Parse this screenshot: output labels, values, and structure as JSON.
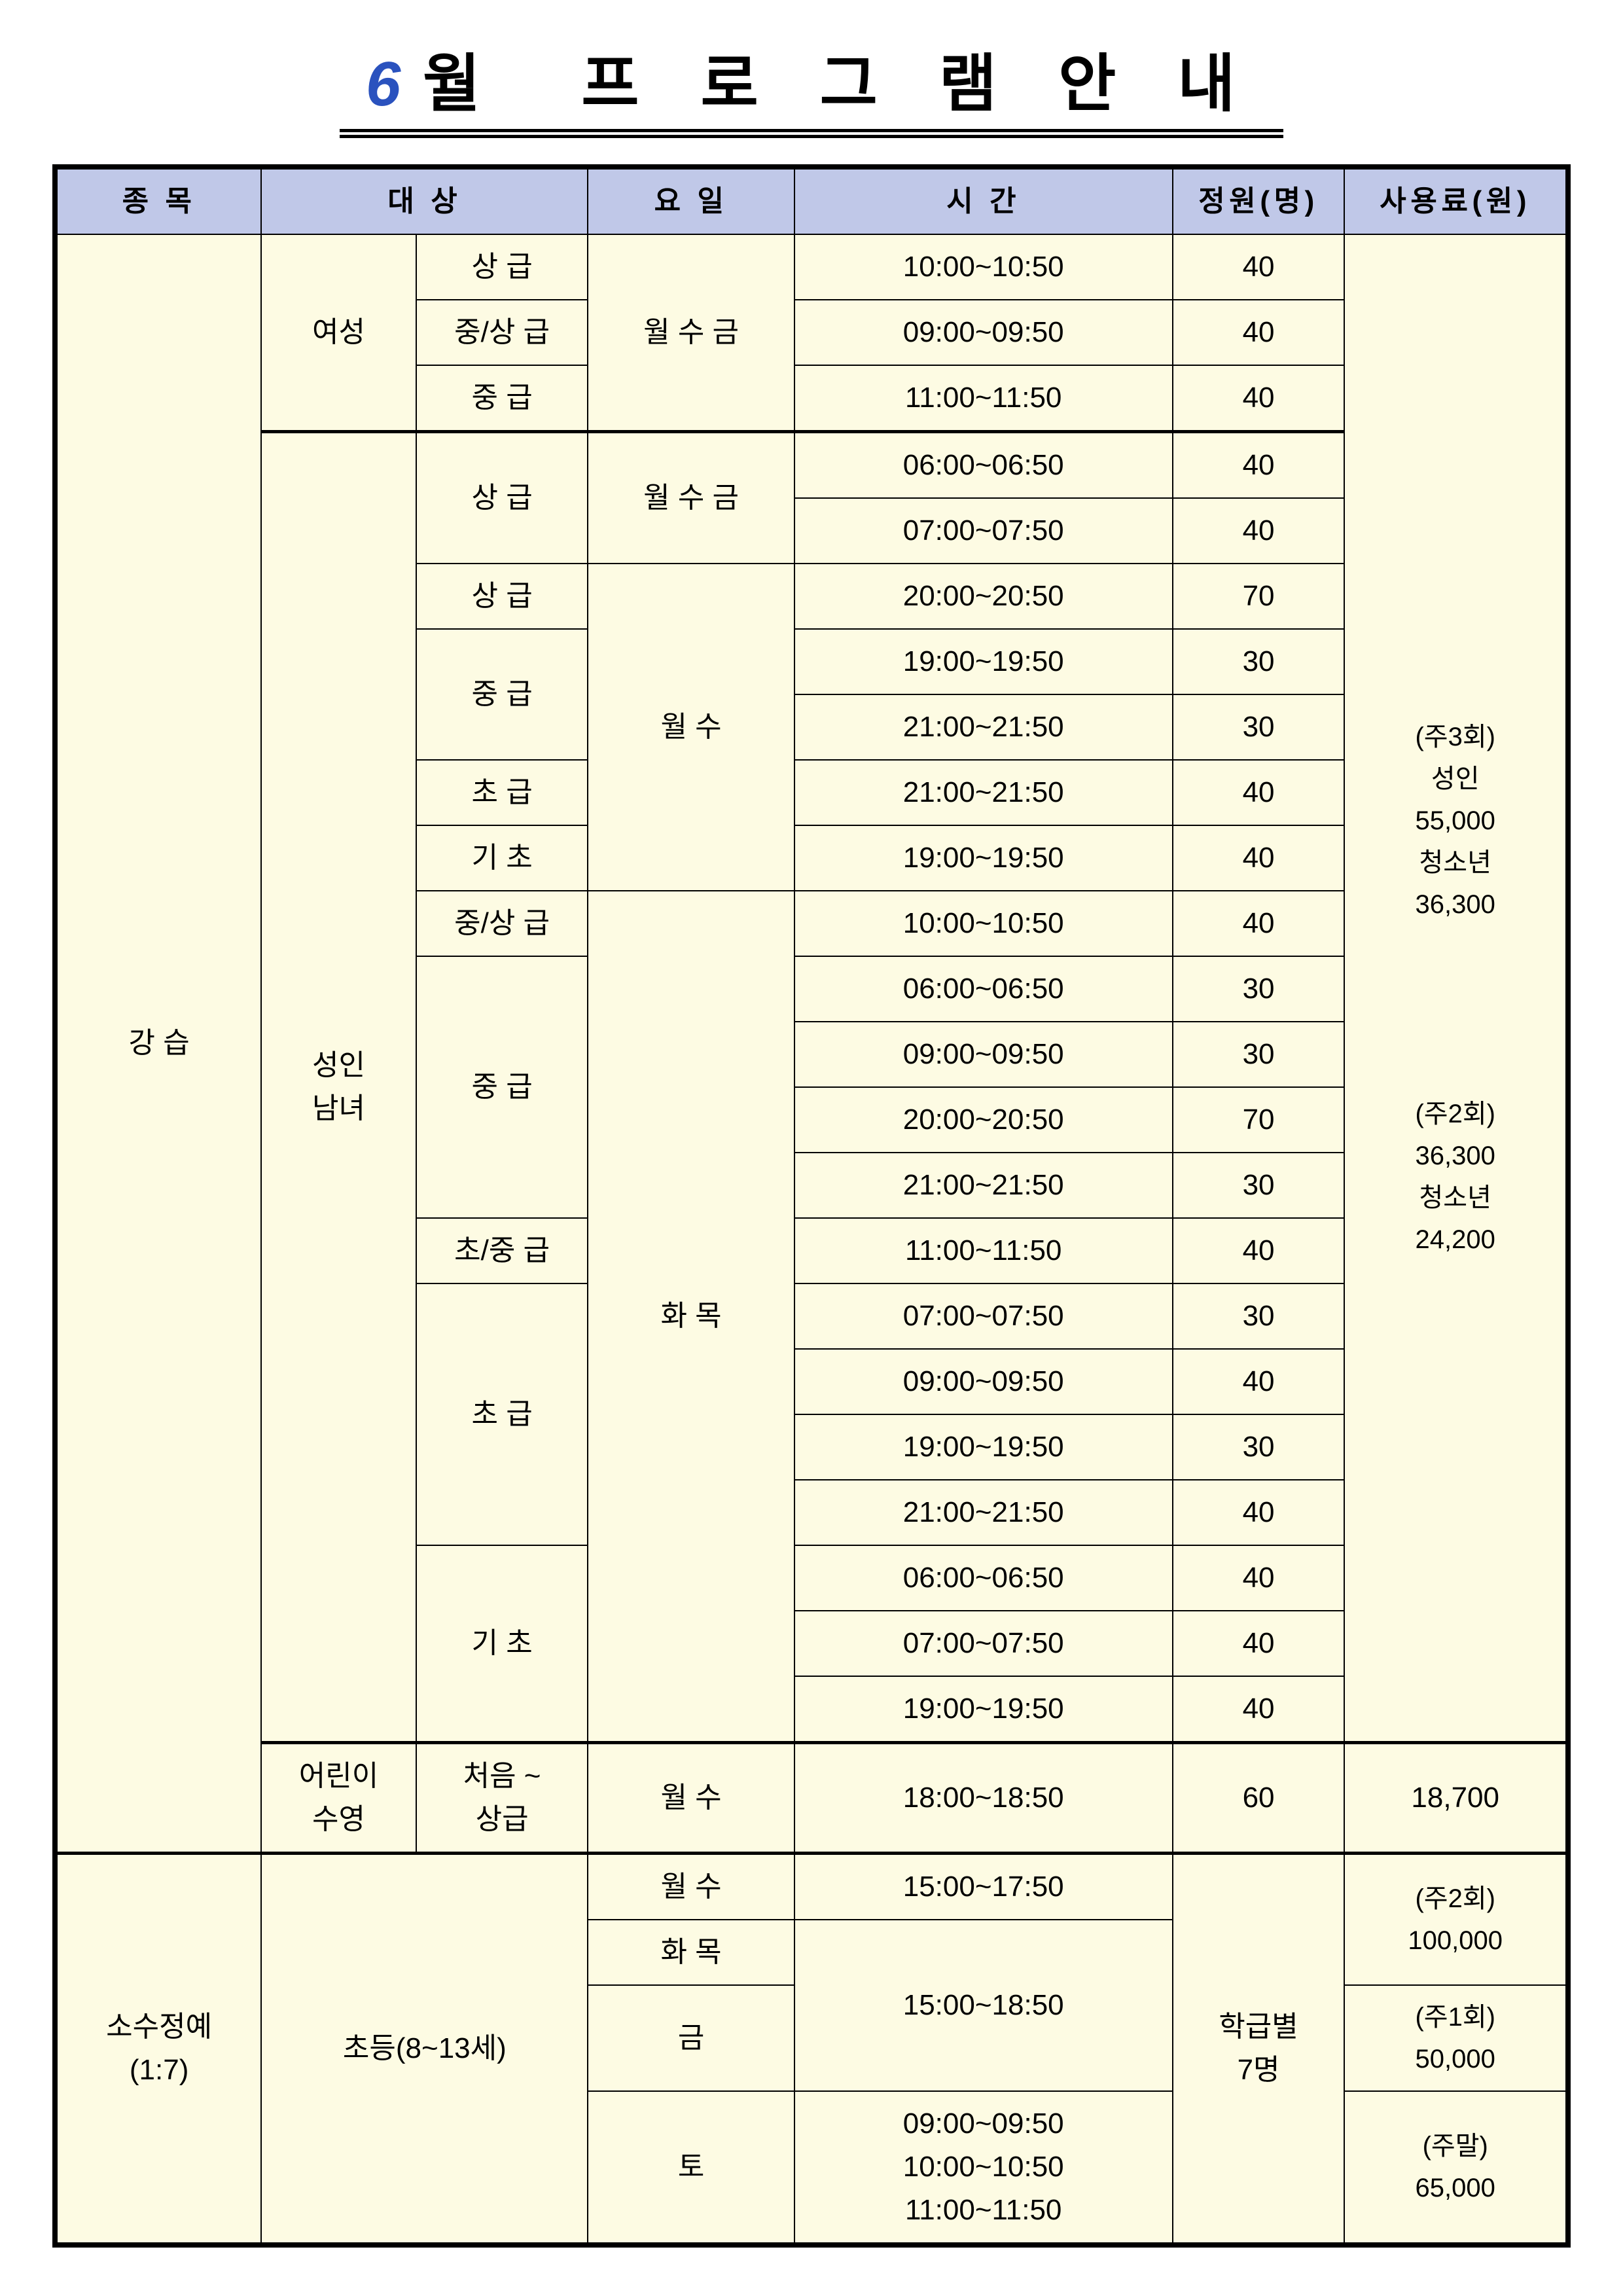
{
  "title": {
    "month": "6",
    "month_suffix": "월",
    "rest": "프 로 그 램  안 내"
  },
  "headers": {
    "category": "종  목",
    "target": "대  상",
    "day": "요 일",
    "time": "시  간",
    "capacity": "정원(명)",
    "fee": "사용료(원)"
  },
  "categories": {
    "lesson": "강 습",
    "small": "소수정예\n(1:7)"
  },
  "targets": {
    "female": "여성",
    "adult": "성인\n남녀",
    "child_swim": "어린이\n수영",
    "elementary": "초등(8~13세)"
  },
  "levels": {
    "adv": "상 급",
    "mid_adv": "중/상 급",
    "mid": "중 급",
    "beg": "초 급",
    "basic": "기 초",
    "beg_mid": "초/중 급",
    "first_adv": "처음 ~\n상급"
  },
  "days": {
    "mwf": "월 수 금",
    "mw": "월 수",
    "tt": "화 목",
    "fri": "금",
    "sat": "토"
  },
  "times": {
    "t1000": "10:00~10:50",
    "t0900": "09:00~09:50",
    "t1100": "11:00~11:50",
    "t0600": "06:00~06:50",
    "t0700": "07:00~07:50",
    "t2000": "20:00~20:50",
    "t1900": "19:00~19:50",
    "t2100": "21:00~21:50",
    "t1800": "18:00~18:50",
    "t1500_1750": "15:00~17:50",
    "t1500_1850": "15:00~18:50",
    "sat_block": "09:00~09:50\n10:00~10:50\n11:00~11:50"
  },
  "caps": {
    "c40": "40",
    "c70": "70",
    "c30": "30",
    "c60": "60",
    "class7": "학급별\n7명"
  },
  "fees": {
    "main": "(주3회)\n성인\n55,000\n청소년\n36,300\n\n\n(주2회)\n36,300\n청소년\n24,200",
    "child": "18,700",
    "small_2": "(주2회)\n100,000",
    "small_1": "(주1회)\n50,000",
    "small_wk": "(주말)\n65,000"
  },
  "style": {
    "header_bg": "#c0c8e8",
    "cell_bg": "#fdfbe3",
    "border_color": "#000000",
    "month_color": "#2a52be",
    "title_fontsize": 96,
    "cell_fontsize": 44,
    "outer_border_width": 8,
    "inner_border_width": 2
  }
}
